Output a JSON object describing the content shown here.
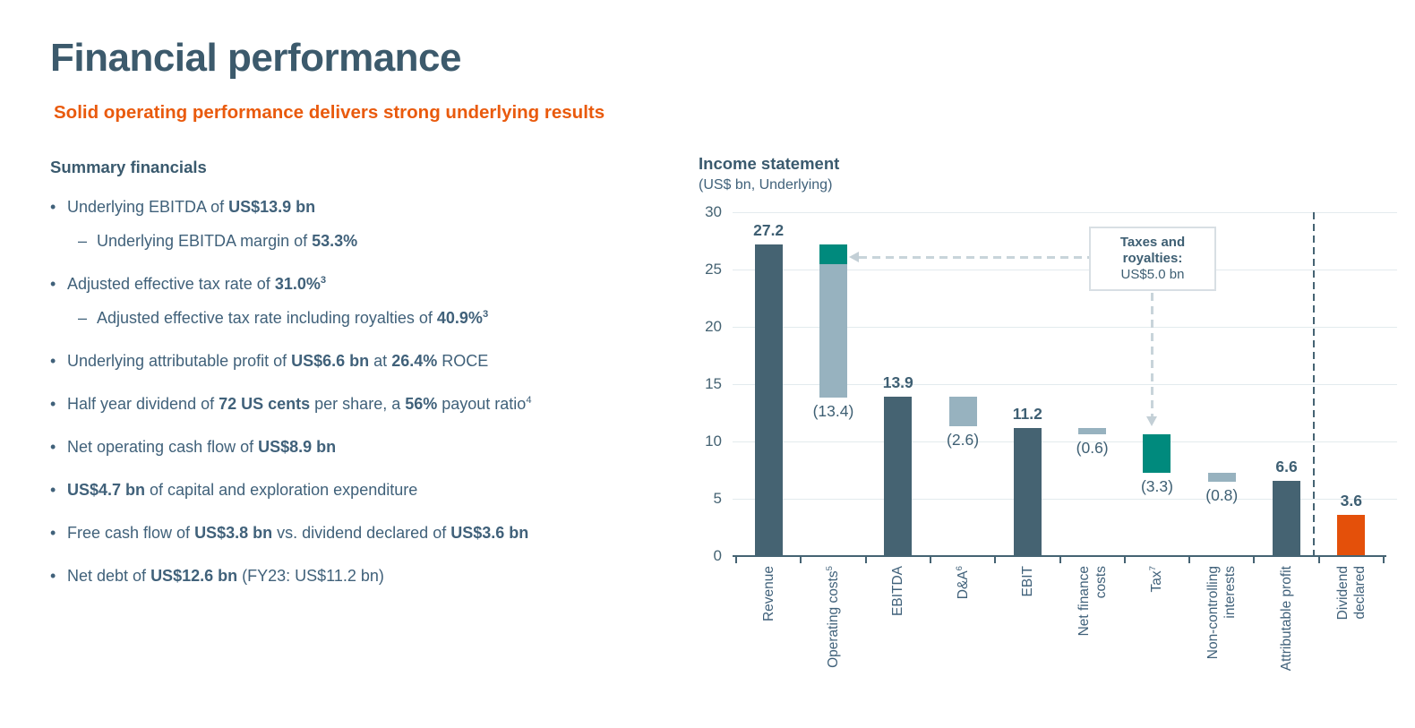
{
  "slide": {
    "title": "Financial performance",
    "subtitle": "Solid operating performance delivers strong underlying results"
  },
  "summary": {
    "heading": "Summary financials",
    "items": [
      {
        "level": 1,
        "segments": [
          {
            "t": "Underlying EBITDA of "
          },
          {
            "t": "US$13.9 bn",
            "b": true
          }
        ]
      },
      {
        "level": 2,
        "segments": [
          {
            "t": "Underlying EBITDA margin of "
          },
          {
            "t": "53.3%",
            "b": true
          }
        ]
      },
      {
        "level": 1,
        "segments": [
          {
            "t": "Adjusted effective tax rate of "
          },
          {
            "t": "31.0%",
            "b": true
          },
          {
            "t": "3",
            "b": true,
            "sup": true
          }
        ]
      },
      {
        "level": 2,
        "segments": [
          {
            "t": "Adjusted effective tax rate including royalties of "
          },
          {
            "t": "40.9%",
            "b": true
          },
          {
            "t": "3",
            "b": true,
            "sup": true
          }
        ]
      },
      {
        "level": 1,
        "segments": [
          {
            "t": "Underlying attributable profit of "
          },
          {
            "t": "US$6.6 bn",
            "b": true
          },
          {
            "t": " at "
          },
          {
            "t": "26.4%",
            "b": true
          },
          {
            "t": " ROCE"
          }
        ]
      },
      {
        "level": 1,
        "segments": [
          {
            "t": "Half year dividend of "
          },
          {
            "t": "72 US cents",
            "b": true
          },
          {
            "t": " per share, a "
          },
          {
            "t": "56%",
            "b": true
          },
          {
            "t": " payout ratio"
          },
          {
            "t": "4",
            "sup": true
          }
        ]
      },
      {
        "level": 1,
        "segments": [
          {
            "t": "Net operating cash flow of "
          },
          {
            "t": "US$8.9 bn",
            "b": true
          }
        ]
      },
      {
        "level": 1,
        "segments": [
          {
            "t": "US$4.7 bn",
            "b": true
          },
          {
            "t": " of capital and exploration expenditure"
          }
        ]
      },
      {
        "level": 1,
        "segments": [
          {
            "t": "Free cash flow of "
          },
          {
            "t": "US$3.8 bn",
            "b": true
          },
          {
            "t": " vs. dividend declared of "
          },
          {
            "t": "US$3.6 bn",
            "b": true
          }
        ]
      },
      {
        "level": 1,
        "segments": [
          {
            "t": "Net debt of "
          },
          {
            "t": "US$12.6 bn",
            "b": true
          },
          {
            "t": " (FY23: US$11.2 bn)"
          }
        ]
      }
    ]
  },
  "chart": {
    "title": "Income statement",
    "subtitle": "(US$ bn, Underlying)",
    "callout": {
      "line1": "Taxes and",
      "line2": "royalties:",
      "line3": "US$5.0 bn"
    }
  },
  "chart_data": {
    "type": "bar",
    "subtype": "waterfall",
    "title": "Income statement",
    "subtitle": "(US$ bn, Underlying)",
    "unit": "US$ bn",
    "ylim": [
      0,
      30
    ],
    "yticks": [
      0,
      5,
      10,
      15,
      20,
      25,
      30
    ],
    "grid": true,
    "categories": [
      "Revenue",
      "Operating costs",
      "EBITDA",
      "D&A",
      "EBIT",
      "Net finance costs",
      "Tax",
      "Non-controlling interests",
      "Attributable profit",
      "Dividend declared"
    ],
    "values": [
      27.2,
      -13.4,
      13.9,
      -2.6,
      11.2,
      -0.6,
      -3.3,
      -0.8,
      6.6,
      3.6
    ],
    "annotation": {
      "label": "Taxes and royalties:",
      "value": "US$5.0 bn"
    },
    "separator_before_category": "Dividend declared",
    "bars": [
      {
        "name": "Revenue",
        "from": 0,
        "to": 27.2,
        "color_key": "bar_dark",
        "value_label": "27.2",
        "label_side": "above",
        "label_bold": true,
        "axis_label": [
          "Revenue"
        ],
        "axis_sup": ""
      },
      {
        "name": "Operating costs",
        "from": 13.8,
        "to": 27.2,
        "color_key": "bar_gray",
        "segments": [
          {
            "from": 25.5,
            "to": 27.2,
            "color_key": "bar_teal"
          }
        ],
        "value_label": "(13.4)",
        "label_side": "below",
        "label_bold": false,
        "axis_label": [
          "Operating costs"
        ],
        "axis_sup": "5"
      },
      {
        "name": "EBITDA",
        "from": 0,
        "to": 13.9,
        "color_key": "bar_dark",
        "value_label": "13.9",
        "label_side": "above",
        "label_bold": true,
        "axis_label": [
          "EBITDA"
        ],
        "axis_sup": ""
      },
      {
        "name": "D&A",
        "from": 11.3,
        "to": 13.9,
        "color_key": "bar_gray",
        "value_label": "(2.6)",
        "label_side": "below",
        "label_bold": false,
        "axis_label": [
          "D&A"
        ],
        "axis_sup": "6"
      },
      {
        "name": "EBIT",
        "from": 0,
        "to": 11.2,
        "color_key": "bar_dark",
        "value_label": "11.2",
        "label_side": "above",
        "label_bold": true,
        "axis_label": [
          "EBIT"
        ],
        "axis_sup": ""
      },
      {
        "name": "Net finance costs",
        "from": 10.6,
        "to": 11.2,
        "color_key": "bar_gray",
        "value_label": "(0.6)",
        "label_side": "below",
        "label_bold": false,
        "axis_label": [
          "Net finance",
          "costs"
        ],
        "axis_sup": ""
      },
      {
        "name": "Tax",
        "from": 7.3,
        "to": 10.6,
        "color_key": "bar_teal",
        "value_label": "(3.3)",
        "label_side": "below",
        "label_bold": false,
        "axis_label": [
          "Tax"
        ],
        "axis_sup": "7"
      },
      {
        "name": "Non-controlling interests",
        "from": 6.5,
        "to": 7.3,
        "color_key": "bar_gray",
        "value_label": "(0.8)",
        "label_side": "below",
        "label_bold": false,
        "axis_label": [
          "Non-controlling",
          "interests"
        ],
        "axis_sup": ""
      },
      {
        "name": "Attributable profit",
        "from": 0,
        "to": 6.6,
        "color_key": "bar_dark",
        "value_label": "6.6",
        "label_side": "above",
        "label_bold": true,
        "axis_label": [
          "Attributable profit"
        ],
        "axis_sup": ""
      },
      {
        "name": "Dividend declared",
        "from": 0,
        "to": 3.6,
        "color_key": "bar_orange",
        "value_label": "3.6",
        "label_side": "above",
        "label_bold": true,
        "axis_label": [
          "Dividend",
          "declared"
        ],
        "axis_sup": ""
      }
    ]
  },
  "colors": {
    "title": "#3C5A6C",
    "body_text": "#40617A",
    "accent_orange": "#E95A0D",
    "bar_dark": "#456372",
    "bar_gray": "#97B2BF",
    "bar_teal": "#008A7D",
    "bar_orange": "#E4500A",
    "gridline": "#E3EBEE",
    "arrow_gray": "#C8D4DA",
    "callout_border": "#D8DFE4",
    "axis": "#456373"
  }
}
